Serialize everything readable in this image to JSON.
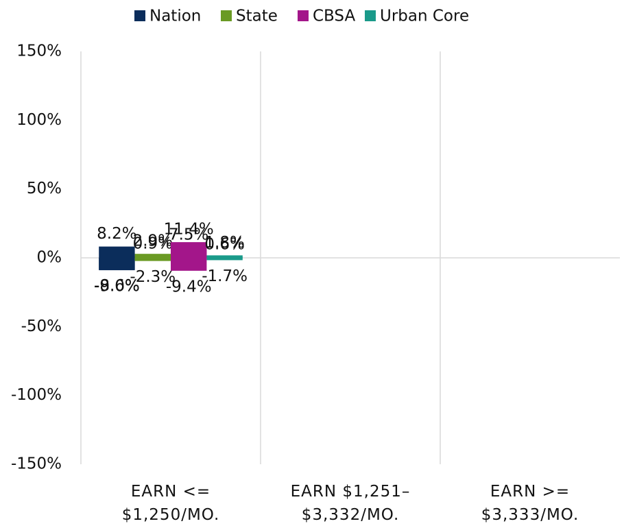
{
  "chart_data": {
    "type": "bar",
    "categories": [
      "EARN <= $1,250/MO.",
      "EARN $1,251–$3,332/MO.",
      "EARN >= $3,333/MO."
    ],
    "series": [
      {
        "name": "Nation",
        "color": "#0b2d5b",
        "values": [
          -8.6,
          -9.0,
          8.2
        ],
        "value_labels": [
          "-8.6%",
          "-9.0%",
          "8.2%"
        ]
      },
      {
        "name": "State",
        "color": "#6a9a24",
        "values": [
          0.9,
          2.9,
          -2.3
        ],
        "value_labels": [
          "0.9%",
          "2.9%",
          "-2.3%"
        ]
      },
      {
        "name": "CBSA",
        "color": "#a3168a",
        "values": [
          7.5,
          11.4,
          -9.4
        ],
        "value_labels": [
          "7.5%",
          "11.4%",
          "-9.4%"
        ]
      },
      {
        "name": "Urban Core",
        "color": "#1a9a8a",
        "values": [
          1.8,
          -1.7,
          0.6
        ],
        "value_labels": [
          "1.8%",
          "-1.7%",
          "0.6%"
        ]
      }
    ],
    "ylim": [
      -150,
      150
    ],
    "yticks": [
      {
        "value": -150,
        "label": "-150%"
      },
      {
        "value": -100,
        "label": "-100%"
      },
      {
        "value": -50,
        "label": "-50%"
      },
      {
        "value": 0,
        "label": "0%"
      },
      {
        "value": 50,
        "label": "50%"
      },
      {
        "value": 100,
        "label": "100%"
      },
      {
        "value": 150,
        "label": "150%"
      }
    ],
    "grid": false,
    "legend": "top"
  }
}
